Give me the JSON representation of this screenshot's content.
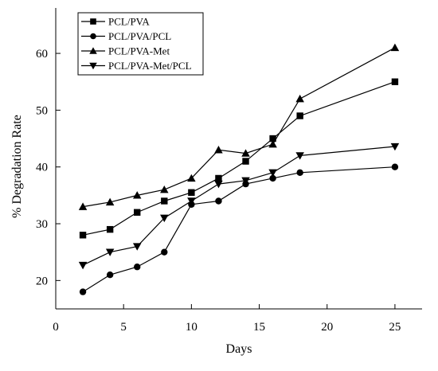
{
  "chart_data": {
    "type": "line",
    "xlabel": "Days",
    "ylabel": "% Degradation Rate",
    "xlim": [
      0,
      27
    ],
    "ylim": [
      15,
      68
    ],
    "xticks": [
      0,
      5,
      10,
      15,
      20,
      25
    ],
    "yticks": [
      20,
      30,
      40,
      50,
      60
    ],
    "grid": false,
    "legend_position": "top-left",
    "series": [
      {
        "name": "PCL/PVA",
        "marker": "square",
        "color": "#000000",
        "x": [
          2,
          4,
          6,
          8,
          10,
          12,
          14,
          16,
          18,
          25
        ],
        "y": [
          28,
          29,
          32,
          34,
          35.5,
          38,
          41,
          45,
          49,
          55
        ]
      },
      {
        "name": "PCL/PVA/PCL",
        "marker": "circle",
        "color": "#000000",
        "x": [
          2,
          4,
          6,
          8,
          10,
          12,
          14,
          16,
          18,
          25
        ],
        "y": [
          18,
          21,
          22.4,
          25,
          33.4,
          34,
          37,
          38,
          39,
          40
        ]
      },
      {
        "name": "PCL/PVA-Met",
        "marker": "triangle-up",
        "color": "#000000",
        "x": [
          2,
          4,
          6,
          8,
          10,
          12,
          14,
          16,
          18,
          25
        ],
        "y": [
          33,
          33.8,
          35,
          36,
          38,
          43,
          42.4,
          44,
          52,
          61
        ]
      },
      {
        "name": "PCL/PVA-Met/PCL",
        "marker": "triangle-down",
        "color": "#000000",
        "x": [
          2,
          4,
          6,
          8,
          10,
          12,
          14,
          16,
          18,
          25
        ],
        "y": [
          22.7,
          25,
          26,
          31,
          34,
          37,
          37.6,
          39,
          42,
          43.6
        ]
      }
    ]
  }
}
